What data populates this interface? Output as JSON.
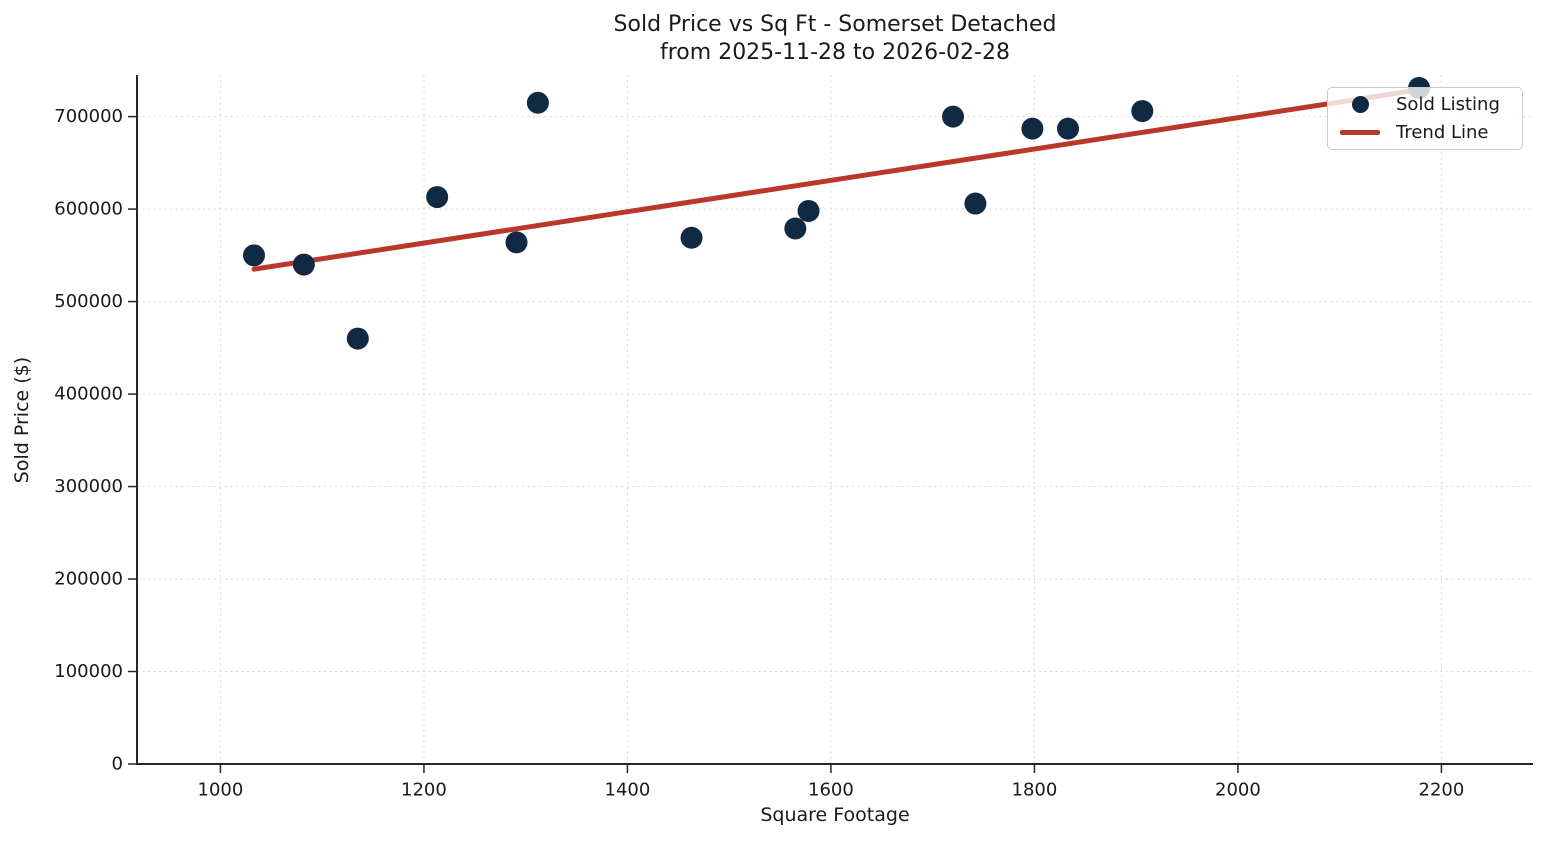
{
  "figure": {
    "title_line1": "Sold Price vs Sq Ft - Somerset Detached",
    "title_line2": "from 2025-11-28 to 2026-02-28",
    "x_axis_label": "Square Footage",
    "y_axis_label": "Sold Price ($)"
  },
  "legend": {
    "position": "upper right",
    "items": [
      {
        "label": "Sold Listing",
        "swatch": "dot",
        "color": "#102a43"
      },
      {
        "label": "Trend Line",
        "swatch": "line",
        "color": "#b9382b"
      }
    ]
  },
  "chart_data": {
    "type": "scatter",
    "title": "Sold Price vs Sq Ft - Somerset Detached",
    "subtitle": "from 2025-11-28 to 2026-02-28",
    "xlabel": "Square Footage",
    "ylabel": "Sold Price ($)",
    "xlim": [
      918,
      2290
    ],
    "ylim": [
      0,
      745000
    ],
    "x_ticks": [
      1000,
      1200,
      1400,
      1600,
      1800,
      2000,
      2200
    ],
    "y_ticks": [
      0,
      100000,
      200000,
      300000,
      400000,
      500000,
      600000,
      700000
    ],
    "grid": true,
    "legend_position": "upper right",
    "series": [
      {
        "name": "Sold Listing",
        "type": "scatter",
        "color": "#102a43",
        "points": [
          [
            1033,
            550000
          ],
          [
            1082,
            540000
          ],
          [
            1135,
            460000
          ],
          [
            1213,
            613000
          ],
          [
            1291,
            564000
          ],
          [
            1312,
            715000
          ],
          [
            1463,
            569000
          ],
          [
            1565,
            579000
          ],
          [
            1578,
            598000
          ],
          [
            1720,
            700000
          ],
          [
            1742,
            606000
          ],
          [
            1798,
            687000
          ],
          [
            1833,
            687000
          ],
          [
            1906,
            706000
          ],
          [
            2178,
            731000
          ]
        ]
      },
      {
        "name": "Trend Line",
        "type": "line",
        "color": "#b9382b",
        "points": [
          [
            1033,
            535000
          ],
          [
            2178,
            729000
          ]
        ]
      }
    ],
    "colors": {
      "marker": "#102a43",
      "trend": "#b9382b",
      "grid": "#d9d9d9",
      "axis": "#262626",
      "text": "#1a1a1a"
    }
  }
}
